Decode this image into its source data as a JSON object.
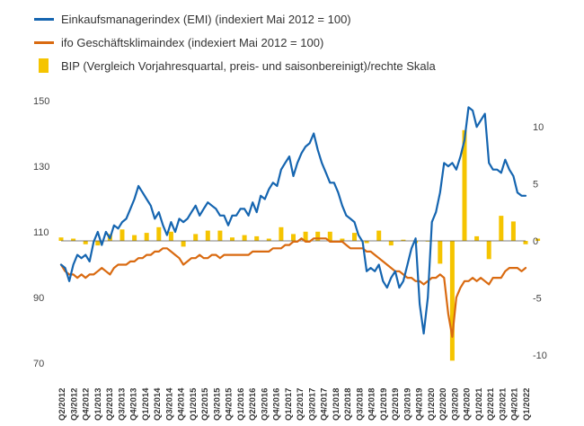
{
  "chart_data": {
    "type": "line",
    "title": "",
    "legend": [
      {
        "key": "emi",
        "label": "Einkaufsmanagerindex (EMI) (indexiert Mai 2012 = 100)",
        "color": "#1565b0"
      },
      {
        "key": "ifo",
        "label": "ifo Geschäftsklimaindex (indexiert Mai 2012 = 100)",
        "color": "#d96a10"
      },
      {
        "key": "bip",
        "label": "BIP (Vergleich Vorjahresquartal, preis- und saisonbereinigt)/rechte Skala",
        "color": "#f5c400"
      }
    ],
    "y_left": {
      "min": 70,
      "max": 150,
      "ticks": [
        "150",
        "130",
        "110",
        "90",
        "70"
      ]
    },
    "y_right": {
      "min": -10,
      "max": 10,
      "ticks": [
        "10",
        "5",
        "0",
        "-5",
        "-10"
      ]
    },
    "x_range": [
      2012.25,
      2021.75
    ],
    "x_tick_labels": [
      "Q2/2012",
      "Q3/2012",
      "Q4/2012",
      "Q1/2013",
      "Q2/2013",
      "Q3/2013",
      "Q4/2013",
      "Q1/2014",
      "Q2/2014",
      "Q3/2014",
      "Q4/2014",
      "Q1/2015",
      "Q2/2015",
      "Q3/2015",
      "Q4/2015",
      "Q1/2016",
      "Q2/2016",
      "Q3/2016",
      "Q4/2016",
      "Q1/2017",
      "Q2/2017",
      "Q3/2017",
      "Q4/2017",
      "Q1/2018",
      "Q2/2018",
      "Q3/2018",
      "Q4/2018",
      "Q1/2019",
      "Q2/2019",
      "Q3/2019",
      "Q4/2019",
      "Q1/2020",
      "Q2/2020",
      "Q3/2020",
      "Q4/2020",
      "Q1/2021",
      "Q2/2021",
      "Q3/2021",
      "Q4/2021",
      "Q1/2022"
    ],
    "bip": {
      "x": [
        2012.25,
        2012.5,
        2012.75,
        2013.0,
        2013.25,
        2013.5,
        2013.75,
        2014.0,
        2014.25,
        2014.5,
        2014.75,
        2015.0,
        2015.25,
        2015.5,
        2015.75,
        2016.0,
        2016.25,
        2016.5,
        2016.75,
        2017.0,
        2017.25,
        2017.5,
        2017.75,
        2018.0,
        2018.25,
        2018.5,
        2018.75,
        2019.0,
        2019.25,
        2019.5,
        2019.75,
        2020.0,
        2020.25,
        2020.5,
        2020.75,
        2021.0,
        2021.25,
        2021.5,
        2021.75,
        2022.0
      ],
      "values": [
        0.3,
        0.2,
        -0.3,
        -0.4,
        0.6,
        1.0,
        0.5,
        0.7,
        1.2,
        0.8,
        -0.5,
        0.6,
        0.9,
        0.9,
        0.3,
        0.5,
        0.4,
        0.2,
        1.2,
        0.6,
        0.8,
        0.8,
        0.8,
        0.2,
        0.7,
        -0.2,
        0.9,
        -0.4,
        0.1,
        -0.2,
        0.0,
        -2.0,
        -10.5,
        9.7,
        0.4,
        -1.6,
        2.2,
        1.7,
        -0.3,
        0.2
      ]
    },
    "series": [
      {
        "name": "Einkaufsmanagerindex (EMI) (indexiert Mai 2012 = 100)",
        "x": [
          2012.25,
          2012.333,
          2012.417,
          2012.5,
          2012.583,
          2012.667,
          2012.75,
          2012.833,
          2012.917,
          2013.0,
          2013.083,
          2013.167,
          2013.25,
          2013.333,
          2013.417,
          2013.5,
          2013.583,
          2013.667,
          2013.75,
          2013.833,
          2013.917,
          2014.0,
          2014.083,
          2014.167,
          2014.25,
          2014.333,
          2014.417,
          2014.5,
          2014.583,
          2014.667,
          2014.75,
          2014.833,
          2014.917,
          2015.0,
          2015.083,
          2015.167,
          2015.25,
          2015.333,
          2015.417,
          2015.5,
          2015.583,
          2015.667,
          2015.75,
          2015.833,
          2015.917,
          2016.0,
          2016.083,
          2016.167,
          2016.25,
          2016.333,
          2016.417,
          2016.5,
          2016.583,
          2016.667,
          2016.75,
          2016.833,
          2016.917,
          2017.0,
          2017.083,
          2017.167,
          2017.25,
          2017.333,
          2017.417,
          2017.5,
          2017.583,
          2017.667,
          2017.75,
          2017.833,
          2017.917,
          2018.0,
          2018.083,
          2018.167,
          2018.25,
          2018.333,
          2018.417,
          2018.5,
          2018.583,
          2018.667,
          2018.75,
          2018.833,
          2018.917,
          2019.0,
          2019.083,
          2019.167,
          2019.25,
          2019.333,
          2019.417,
          2019.5,
          2019.583,
          2019.667,
          2019.75,
          2019.833,
          2019.917,
          2020.0,
          2020.083,
          2020.167,
          2020.25,
          2020.333,
          2020.417,
          2020.5,
          2020.583,
          2020.667,
          2020.75,
          2020.833,
          2020.917,
          2021.0,
          2021.083,
          2021.167,
          2021.25,
          2021.333,
          2021.417,
          2021.5,
          2021.583,
          2021.667,
          2021.75
        ],
        "values": [
          100,
          99,
          95,
          100,
          103,
          102,
          103,
          101,
          107,
          110,
          106,
          110,
          108,
          112,
          111,
          113,
          114,
          117,
          120,
          124,
          122,
          120,
          118,
          114,
          116,
          112,
          109,
          113,
          110,
          114,
          113,
          114,
          116,
          118,
          115,
          117,
          119,
          118,
          117,
          115,
          115,
          112,
          115,
          115,
          117,
          117,
          115,
          119,
          116,
          121,
          120,
          123,
          125,
          124,
          129,
          131,
          133,
          127,
          131,
          134,
          136,
          137,
          140,
          135,
          131,
          128,
          125,
          125,
          122,
          118,
          115,
          114,
          113,
          109,
          107,
          98,
          99,
          98,
          100,
          95,
          93,
          96,
          98,
          93,
          95,
          100,
          105,
          108,
          88,
          79,
          90,
          113,
          116,
          122,
          131,
          130,
          131,
          129,
          133,
          138,
          148,
          147,
          142,
          144,
          146,
          131,
          129,
          129,
          128,
          132,
          129,
          127,
          122,
          121,
          121
        ],
        "color": "#1565b0"
      },
      {
        "name": "ifo Geschäftsklimaindex (indexiert Mai 2012 = 100)",
        "x": [
          2012.25,
          2012.333,
          2012.417,
          2012.5,
          2012.583,
          2012.667,
          2012.75,
          2012.833,
          2012.917,
          2013.0,
          2013.083,
          2013.167,
          2013.25,
          2013.333,
          2013.417,
          2013.5,
          2013.583,
          2013.667,
          2013.75,
          2013.833,
          2013.917,
          2014.0,
          2014.083,
          2014.167,
          2014.25,
          2014.333,
          2014.417,
          2014.5,
          2014.583,
          2014.667,
          2014.75,
          2014.833,
          2014.917,
          2015.0,
          2015.083,
          2015.167,
          2015.25,
          2015.333,
          2015.417,
          2015.5,
          2015.583,
          2015.667,
          2015.75,
          2015.833,
          2015.917,
          2016.0,
          2016.083,
          2016.167,
          2016.25,
          2016.333,
          2016.417,
          2016.5,
          2016.583,
          2016.667,
          2016.75,
          2016.833,
          2016.917,
          2017.0,
          2017.083,
          2017.167,
          2017.25,
          2017.333,
          2017.417,
          2017.5,
          2017.583,
          2017.667,
          2017.75,
          2017.833,
          2017.917,
          2018.0,
          2018.083,
          2018.167,
          2018.25,
          2018.333,
          2018.417,
          2018.5,
          2018.583,
          2018.667,
          2018.75,
          2018.833,
          2018.917,
          2019.0,
          2019.083,
          2019.167,
          2019.25,
          2019.333,
          2019.417,
          2019.5,
          2019.583,
          2019.667,
          2019.75,
          2019.833,
          2019.917,
          2020.0,
          2020.083,
          2020.167,
          2020.25,
          2020.333,
          2020.417,
          2020.5,
          2020.583,
          2020.667,
          2020.75,
          2020.833,
          2020.917,
          2021.0,
          2021.083,
          2021.167,
          2021.25,
          2021.333,
          2021.417,
          2021.5,
          2021.583,
          2021.667,
          2021.75
        ],
        "values": [
          100,
          98,
          97,
          97,
          96,
          97,
          96,
          97,
          97,
          98,
          99,
          98,
          97,
          99,
          100,
          100,
          100,
          101,
          101,
          102,
          102,
          103,
          103,
          104,
          104,
          105,
          105,
          104,
          103,
          102,
          100,
          101,
          102,
          102,
          103,
          102,
          102,
          103,
          103,
          102,
          103,
          103,
          103,
          103,
          103,
          103,
          103,
          104,
          104,
          104,
          104,
          104,
          105,
          105,
          105,
          106,
          106,
          107,
          107,
          108,
          107,
          107,
          108,
          108,
          108,
          108,
          107,
          107,
          107,
          107,
          106,
          105,
          105,
          105,
          105,
          104,
          104,
          103,
          102,
          101,
          100,
          99,
          98,
          98,
          97,
          96,
          96,
          95,
          95,
          94,
          95,
          96,
          96,
          97,
          96,
          85,
          78,
          90,
          93,
          95,
          95,
          96,
          95,
          96,
          95,
          94,
          96,
          96,
          96,
          98,
          99,
          99,
          99,
          98,
          99
        ],
        "color": "#d96a10"
      }
    ]
  }
}
